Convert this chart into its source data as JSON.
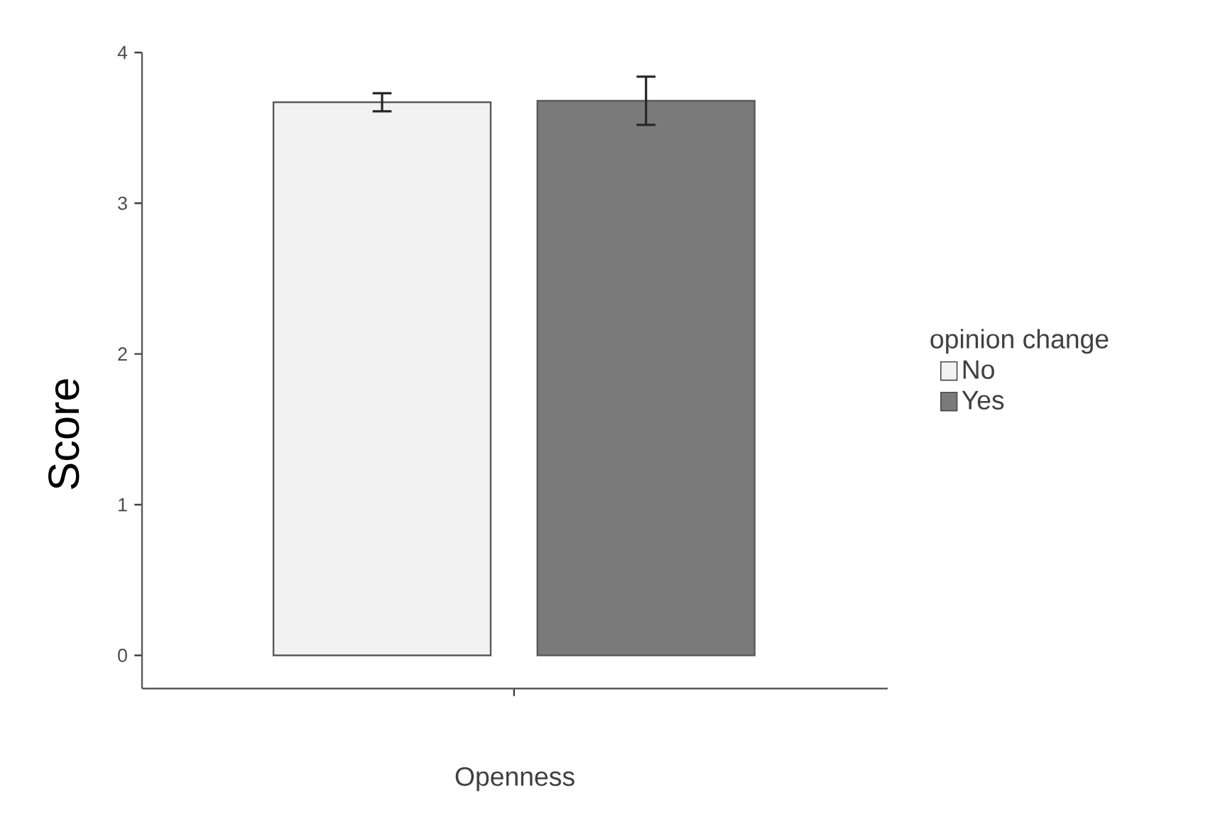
{
  "chart_data": {
    "type": "bar",
    "xlabel": "Openness",
    "ylabel": "Score",
    "legend_title": "opinion change",
    "categories": [
      null
    ],
    "series": [
      {
        "name": "No",
        "color": "#f2f2f2",
        "values": [
          3.67
        ],
        "errors": [
          0.06
        ]
      },
      {
        "name": "Yes",
        "color": "#7a7a7a",
        "values": [
          3.68
        ],
        "errors": [
          0.16
        ]
      }
    ],
    "ylim": [
      -0.22,
      4
    ],
    "yticks": [
      0,
      1,
      2,
      3,
      4
    ],
    "legend": "right"
  }
}
